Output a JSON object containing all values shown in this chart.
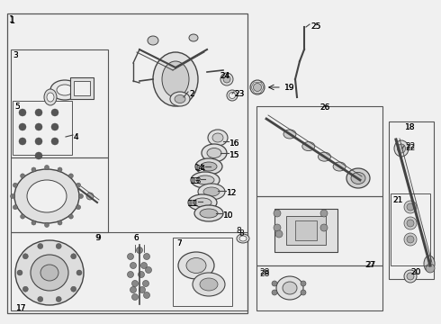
{
  "bg_color": "#f0f0f0",
  "border_color": "#555555",
  "line_color": "#444444",
  "label_color": "#000000",
  "fig_width": 4.9,
  "fig_height": 3.6,
  "dpi": 100
}
